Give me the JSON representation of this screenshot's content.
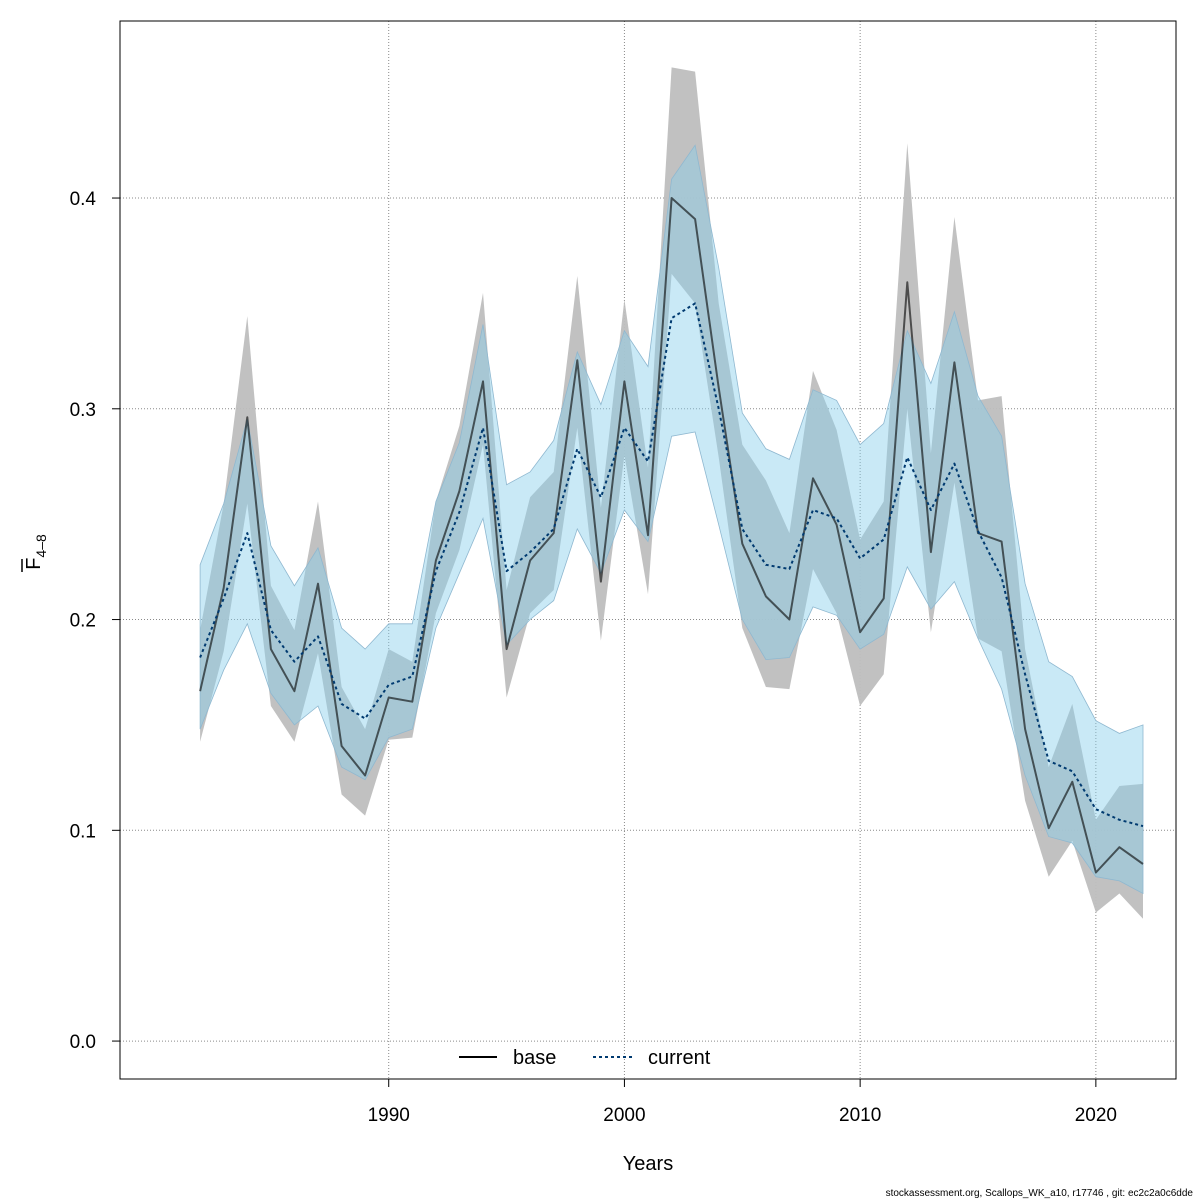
{
  "chart_data": {
    "type": "line",
    "xlabel": "Years",
    "ylabel": {
      "main": "F",
      "sub": "4–8"
    },
    "xlim": [
      1978.6,
      2023.4
    ],
    "ylim": [
      -0.018,
      0.484
    ],
    "x_ticks": [
      1990,
      2000,
      2010,
      2020
    ],
    "y_ticks": [
      0.0,
      0.1,
      0.2,
      0.3,
      0.4
    ],
    "y_tick_labels": [
      "0.0",
      "0.1",
      "0.2",
      "0.3",
      "0.4"
    ],
    "grid": true,
    "legend_position": "bottom-center",
    "footer_text": "stockassessment.org, Scallops_WK_a10, r17746 , git: ec2c2a0c6dde",
    "x": [
      1982,
      1983,
      1984,
      1985,
      1986,
      1987,
      1988,
      1989,
      1990,
      1991,
      1992,
      1993,
      1994,
      1995,
      1996,
      1997,
      1998,
      1999,
      2000,
      2001,
      2002,
      2003,
      2004,
      2005,
      2006,
      2007,
      2008,
      2009,
      2010,
      2011,
      2012,
      2013,
      2014,
      2015,
      2016,
      2017,
      2018,
      2019,
      2020,
      2021,
      2022
    ],
    "series": [
      {
        "name": "base",
        "color": "#000000",
        "dash": "solid",
        "band_color": "#bebebe",
        "values": [
          0.166,
          0.215,
          0.296,
          0.186,
          0.166,
          0.217,
          0.14,
          0.126,
          0.163,
          0.161,
          0.228,
          0.261,
          0.313,
          0.186,
          0.228,
          0.241,
          0.323,
          0.218,
          0.313,
          0.24,
          0.4,
          0.39,
          0.31,
          0.236,
          0.211,
          0.2,
          0.267,
          0.245,
          0.194,
          0.21,
          0.36,
          0.232,
          0.322,
          0.241,
          0.237,
          0.148,
          0.101,
          0.123,
          0.08,
          0.092,
          0.084
        ],
        "lower": [
          0.142,
          0.185,
          0.255,
          0.159,
          0.142,
          0.184,
          0.117,
          0.107,
          0.143,
          0.144,
          0.203,
          0.233,
          0.283,
          0.163,
          0.203,
          0.214,
          0.291,
          0.19,
          0.278,
          0.212,
          0.364,
          0.35,
          0.277,
          0.196,
          0.168,
          0.167,
          0.224,
          0.203,
          0.159,
          0.174,
          0.3,
          0.194,
          0.265,
          0.191,
          0.185,
          0.114,
          0.078,
          0.095,
          0.061,
          0.07,
          0.058
        ],
        "upper": [
          0.195,
          0.255,
          0.344,
          0.216,
          0.195,
          0.256,
          0.168,
          0.148,
          0.186,
          0.18,
          0.256,
          0.292,
          0.355,
          0.214,
          0.258,
          0.27,
          0.363,
          0.253,
          0.352,
          0.272,
          0.462,
          0.46,
          0.35,
          0.283,
          0.266,
          0.241,
          0.318,
          0.29,
          0.238,
          0.256,
          0.426,
          0.279,
          0.391,
          0.304,
          0.306,
          0.186,
          0.13,
          0.16,
          0.105,
          0.121,
          0.122
        ]
      },
      {
        "name": "current",
        "color": "#003a70",
        "dash": "dotted",
        "band_color": "#87ceeb",
        "values": [
          0.182,
          0.21,
          0.241,
          0.195,
          0.18,
          0.192,
          0.16,
          0.153,
          0.169,
          0.173,
          0.223,
          0.251,
          0.291,
          0.223,
          0.232,
          0.243,
          0.281,
          0.258,
          0.291,
          0.275,
          0.343,
          0.35,
          0.3,
          0.243,
          0.226,
          0.224,
          0.252,
          0.248,
          0.229,
          0.238,
          0.277,
          0.252,
          0.274,
          0.242,
          0.22,
          0.174,
          0.133,
          0.128,
          0.11,
          0.105,
          0.102
        ],
        "lower": [
          0.148,
          0.176,
          0.198,
          0.165,
          0.15,
          0.159,
          0.13,
          0.124,
          0.144,
          0.148,
          0.196,
          0.222,
          0.248,
          0.188,
          0.2,
          0.209,
          0.243,
          0.222,
          0.252,
          0.237,
          0.287,
          0.289,
          0.245,
          0.2,
          0.181,
          0.182,
          0.206,
          0.202,
          0.186,
          0.193,
          0.225,
          0.205,
          0.218,
          0.191,
          0.167,
          0.126,
          0.097,
          0.094,
          0.078,
          0.076,
          0.07
        ],
        "upper": [
          0.226,
          0.255,
          0.295,
          0.235,
          0.216,
          0.234,
          0.196,
          0.186,
          0.198,
          0.198,
          0.256,
          0.284,
          0.34,
          0.264,
          0.27,
          0.285,
          0.327,
          0.302,
          0.337,
          0.32,
          0.409,
          0.425,
          0.367,
          0.298,
          0.281,
          0.276,
          0.309,
          0.304,
          0.283,
          0.293,
          0.337,
          0.312,
          0.346,
          0.306,
          0.287,
          0.217,
          0.18,
          0.173,
          0.152,
          0.146,
          0.15
        ]
      }
    ]
  }
}
